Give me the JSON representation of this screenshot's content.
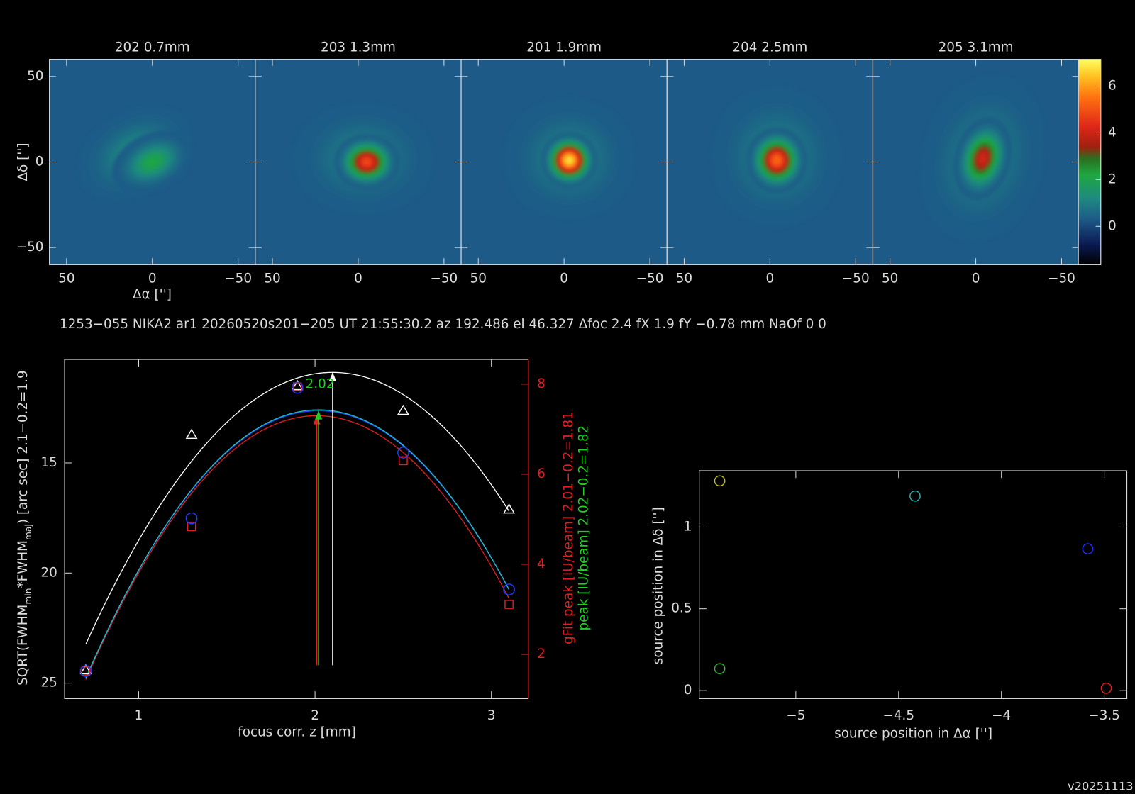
{
  "caption": "1253−055 NIKA2 ar1 20260520s201−205 UT 21:55:30.2 az 192.486 el 46.327 Δfoc 2.4 fX 1.9 fY −0.78 mm NaOf 0 0",
  "version": "v20251113",
  "chart_data": [
    {
      "type": "image",
      "xlabel": "Δα ['']",
      "ylabel": "Δδ ['']",
      "xlim": [
        60,
        -60
      ],
      "ylim": [
        -60,
        60
      ],
      "xticks": [
        50,
        0,
        {
          "value": -50,
          "label": "−50"
        }
      ],
      "yticks": [
        {
          "value": -50,
          "label": "−50"
        },
        0,
        50
      ],
      "background": 0.3,
      "colorbar": {
        "lim": [
          -1.64,
          7.15
        ],
        "ticks": [
          0,
          2,
          4,
          6
        ]
      },
      "colormap": [
        {
          "value": -1.64,
          "color": "#000000"
        },
        {
          "value": -0.8,
          "color": "#0a1850"
        },
        {
          "value": 0.3,
          "color": "#1d5a88"
        },
        {
          "value": 1.2,
          "color": "#1e8a80"
        },
        {
          "value": 2.2,
          "color": "#1fa840"
        },
        {
          "value": 2.9,
          "color": "#2a7020"
        },
        {
          "value": 3.4,
          "color": "#a02010"
        },
        {
          "value": 4.3,
          "color": "#e02818"
        },
        {
          "value": 5.5,
          "color": "#ff7010"
        },
        {
          "value": 6.4,
          "color": "#ffc020"
        },
        {
          "value": 7.15,
          "color": "#ffff60"
        }
      ],
      "panels": [
        {
          "title": "202 0.7mm",
          "sources": [
            {
              "x": 10,
              "y": 5,
              "peak": 1.4,
              "sx": 13,
              "sy": 9,
              "angle": -30
            },
            {
              "x": 0,
              "y": 0,
              "peak": 2.2,
              "sx": 9,
              "sy": 6,
              "angle": -25
            }
          ]
        },
        {
          "title": "203 1.3mm",
          "sources": [
            {
              "x": -3,
              "y": 2,
              "peak": 1.2,
              "sx": 15,
              "sy": 12,
              "angle": 0
            },
            {
              "x": -5,
              "y": 0,
              "peak": 5.0,
              "sx": 7,
              "sy": 6,
              "angle": 0
            }
          ]
        },
        {
          "title": "201 1.9mm",
          "sources": [
            {
              "x": -3,
              "y": 2,
              "peak": 1.2,
              "sx": 14,
              "sy": 13,
              "angle": 0
            },
            {
              "x": -3,
              "y": 1,
              "peak": 7.0,
              "sx": 6,
              "sy": 6,
              "angle": 0
            }
          ]
        },
        {
          "title": "204 2.5mm",
          "sources": [
            {
              "x": -4,
              "y": 3,
              "peak": 1.2,
              "sx": 14,
              "sy": 15,
              "angle": 0
            },
            {
              "x": -4,
              "y": 1,
              "peak": 5.5,
              "sx": 6.5,
              "sy": 7,
              "angle": 0
            }
          ]
        },
        {
          "title": "205 3.1mm",
          "sources": [
            {
              "x": -4,
              "y": 2,
              "peak": 1.2,
              "sx": 13,
              "sy": 18,
              "angle": 15
            },
            {
              "x": -4,
              "y": 2,
              "peak": 4.2,
              "sx": 6,
              "sy": 9,
              "angle": 15
            }
          ]
        }
      ]
    },
    {
      "type": "scatter",
      "xlabel": "focus corr. z [mm]",
      "ylabel": [
        "SQRT(FWHM",
        "min",
        "*FWHM",
        "maj",
        ") [arc sec] 2.1−0.2=1.9"
      ],
      "y2label": [
        {
          "text": "gFit peak [IU/beam] 2.01−0.2=1.81",
          "color": "#e02020"
        },
        {
          "text": "peak [IU/beam] 2.02−0.2=1.82",
          "color": "#20d020"
        }
      ],
      "xlim": [
        0.58,
        3.21
      ],
      "xticks": [
        1,
        2,
        3
      ],
      "ylim": [
        25.7,
        10.3
      ],
      "yticks": [
        15,
        20,
        25
      ],
      "y2lim": [
        1.02,
        8.55
      ],
      "y2ticks": [
        2,
        4,
        6,
        8
      ],
      "x": [
        0.7,
        1.3,
        1.9,
        2.5,
        3.1
      ],
      "series": [
        {
          "marker": "triangle",
          "color": "#ffffff",
          "axis": "y",
          "values": [
            24.41,
            13.72,
            11.51,
            12.63,
            17.11
          ]
        },
        {
          "marker": "square",
          "color": "#e02020",
          "axis": "y2",
          "values": [
            1.63,
            4.84,
            7.94,
            6.3,
            3.11
          ]
        },
        {
          "marker": "circle",
          "color": "#2040ff",
          "axis": "y2",
          "values": [
            1.63,
            5.02,
            7.92,
            6.48,
            3.44
          ]
        }
      ],
      "fits": [
        {
          "color": "#ffffff",
          "axis": "y",
          "vertex": 2.1,
          "extremum": 10.89,
          "curvature": 6.3,
          "arrow": "#ffffff"
        },
        {
          "color": "#e02020",
          "axis": "y2",
          "vertex": 2.01,
          "extremum": 7.3,
          "curvature": -3.415,
          "arrow": "#e02020"
        },
        {
          "color": "#2040ff",
          "axis": "y2",
          "vertex": 2.02,
          "extremum": 7.41,
          "curvature": -3.41,
          "arrow": "#20d020",
          "label": "2.02",
          "label_color": "#20d020"
        },
        {
          "color": "#20c0c0",
          "axis": "y2",
          "vertex": 2.02,
          "extremum": 7.43,
          "curvature": -3.42
        }
      ]
    },
    {
      "type": "scatter",
      "xlabel": "source position in Δα ['']",
      "ylabel": "source position in Δδ ['']",
      "xlim": [
        -5.47,
        -3.39
      ],
      "ylim": [
        -0.05,
        1.345
      ],
      "xticks": [
        {
          "value": -5,
          "label": "−5"
        },
        {
          "value": -4.5,
          "label": "−4.5"
        },
        {
          "value": -4,
          "label": "−4"
        },
        {
          "value": -3.5,
          "label": "−3.5"
        }
      ],
      "yticks": [
        0,
        0.5,
        1
      ],
      "x": [
        -5.37,
        -5.37,
        -4.42,
        -3.58,
        -3.49
      ],
      "values": [
        1.283,
        0.133,
        1.19,
        0.867,
        0.013
      ],
      "colors": [
        "#c0c020",
        "#30b030",
        "#30b0b0",
        "#2030ff",
        "#e02020"
      ]
    }
  ]
}
